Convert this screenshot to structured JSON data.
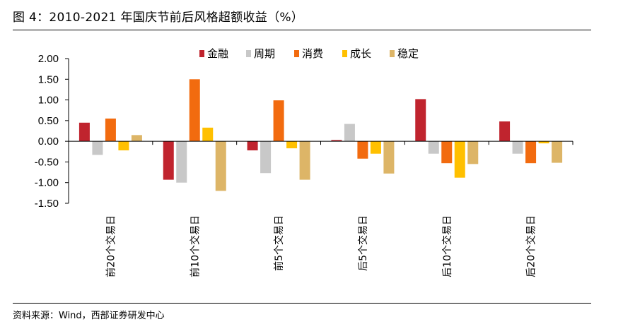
{
  "header": {
    "title": "图 4：2010-2021 年国庆节前后风格超额收益（%）"
  },
  "footer": {
    "source": "资料来源：Wind，西部证券研发中心"
  },
  "chart_data": {
    "type": "bar",
    "title": "",
    "xlabel": "",
    "ylabel": "",
    "ylim": [
      -1.5,
      2.0
    ],
    "yticks": [
      "2.00",
      "1.50",
      "1.00",
      "0.50",
      "0.00",
      "-0.50",
      "-1.00",
      "-1.50"
    ],
    "legend_position": "top-center",
    "grid": false,
    "categories": [
      "前20个交易日",
      "前10个交易日",
      "前5个交易日",
      "后5个交易日",
      "后10个交易日",
      "后20个交易日"
    ],
    "series": [
      {
        "name": "金融",
        "color": "#C0242E",
        "values": [
          0.45,
          -0.93,
          -0.22,
          0.03,
          1.02,
          0.48
        ]
      },
      {
        "name": "周期",
        "color": "#C8C8C8",
        "values": [
          -0.33,
          -1.0,
          -0.77,
          0.42,
          -0.3,
          -0.3
        ]
      },
      {
        "name": "消费",
        "color": "#F26B0F",
        "values": [
          0.55,
          1.5,
          0.99,
          -0.42,
          -0.53,
          -0.53
        ]
      },
      {
        "name": "成长",
        "color": "#FFC000",
        "values": [
          -0.22,
          0.33,
          -0.17,
          -0.3,
          -0.88,
          -0.05
        ]
      },
      {
        "name": "稳定",
        "color": "#DDB567",
        "values": [
          0.15,
          -1.2,
          -0.93,
          -0.78,
          -0.55,
          -0.52
        ]
      }
    ]
  }
}
